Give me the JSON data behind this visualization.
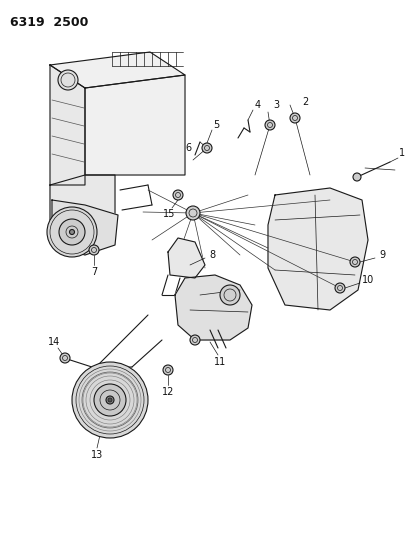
{
  "title": "6319  2500",
  "background_color": "#ffffff",
  "line_color": "#1a1a1a",
  "label_color": "#111111",
  "label_fontsize": 7.0,
  "fig_width": 4.08,
  "fig_height": 5.33,
  "dpi": 100
}
